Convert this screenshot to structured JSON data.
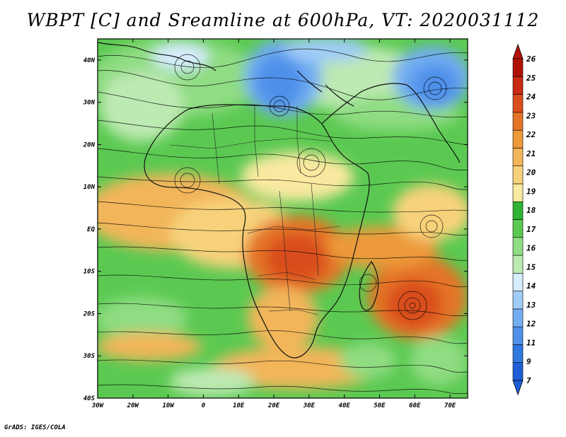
{
  "title": "WBPT [C] and Sreamline at 600hPa, VT: 2020031112",
  "footer": "GrADS: IGES/COLA",
  "map": {
    "lon_labels": [
      "30W",
      "20W",
      "10W",
      "0",
      "10E",
      "20E",
      "30E",
      "40E",
      "50E",
      "60E",
      "70E"
    ],
    "lat_labels": [
      "40N",
      "30N",
      "20N",
      "10N",
      "EQ",
      "10S",
      "20S",
      "30S",
      "40S"
    ],
    "lon_range": [
      -30,
      75
    ],
    "lat_range": [
      -40,
      45
    ]
  },
  "colorbar": {
    "labels": [
      "7",
      "9",
      "11",
      "12",
      "13",
      "14",
      "15",
      "16",
      "17",
      "18",
      "19",
      "20",
      "21",
      "22",
      "23",
      "24",
      "25",
      "26"
    ],
    "colors": [
      "#1e5fd6",
      "#2f78e0",
      "#4f91ea",
      "#73aef2",
      "#a0ccf8",
      "#d6ecfc",
      "#bde9b2",
      "#8fdc82",
      "#5bc951",
      "#2fb334",
      "#f9e9a0",
      "#f7d27a",
      "#f2b55a",
      "#ec9a3a",
      "#e57426",
      "#d94e1e",
      "#c92a12",
      "#b01208"
    ]
  }
}
